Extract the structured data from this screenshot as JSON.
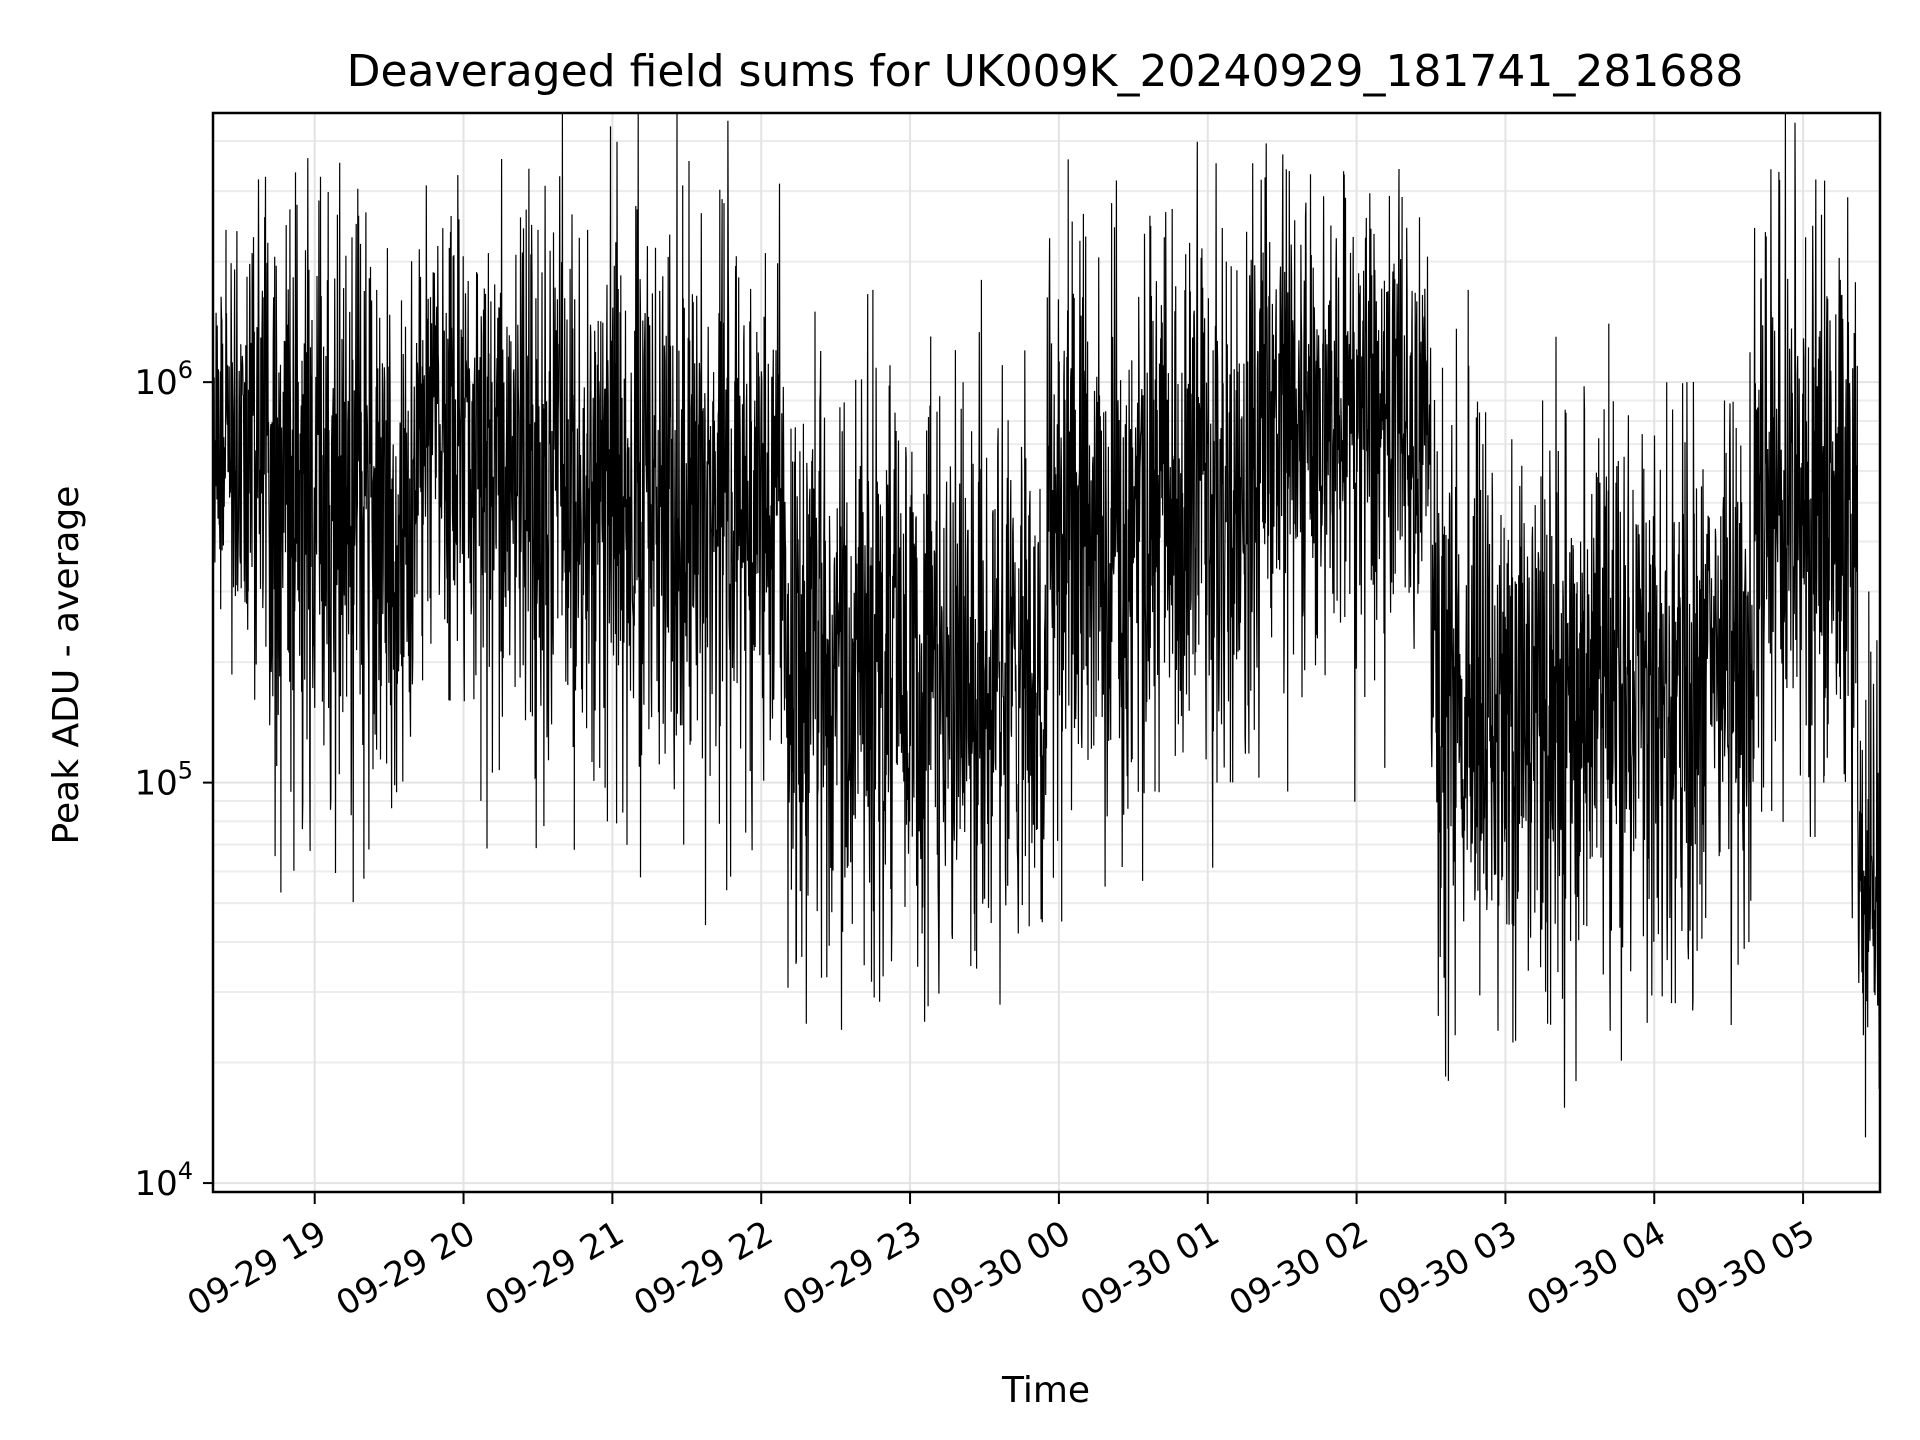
{
  "chart_data": {
    "type": "line",
    "title": "Deaveraged field sums for UK009K_20240929_181741_281688",
    "xlabel": "Time",
    "ylabel": "Peak ADU - average",
    "x_range": [
      "2024-09-29T18:19",
      "2024-09-30T05:31"
    ],
    "y_range": [
      9500,
      4700000
    ],
    "y_scale": "log",
    "grid": true,
    "x_ticks": [
      "09-29 19",
      "09-29 20",
      "09-29 21",
      "09-29 22",
      "09-29 23",
      "09-30 00",
      "09-30 01",
      "09-30 02",
      "09-30 03",
      "09-30 04",
      "09-30 05"
    ],
    "y_ticks": [
      {
        "base": "10",
        "exp": "4",
        "value": 10000
      },
      {
        "base": "10",
        "exp": "5",
        "value": 100000
      },
      {
        "base": "10",
        "exp": "6",
        "value": 1000000
      }
    ],
    "series": [
      {
        "color": "#000000",
        "segments": [
          {
            "start": "2024-09-29T18:19",
            "end": "2024-09-29T18:40",
            "median": 700000,
            "spread": 0.3,
            "spikes_up": [
              2400000,
              2100000
            ],
            "spikes_down": [
              380000,
              300000
            ]
          },
          {
            "start": "2024-09-29T18:40",
            "end": "2024-09-29T19:20",
            "median": 550000,
            "spread": 0.4,
            "spikes_up": [
              2700000,
              1800000
            ],
            "spikes_down": [
              110000,
              105000,
              150000
            ]
          },
          {
            "start": "2024-09-29T19:20",
            "end": "2024-09-29T19:40",
            "median": 480000,
            "spread": 0.38,
            "spikes_up": [
              1700000,
              1600000
            ],
            "spikes_down": [
              108000,
              200000
            ]
          },
          {
            "start": "2024-09-29T19:40",
            "end": "2024-09-29T20:00",
            "median": 800000,
            "spread": 0.32,
            "spikes_up": [
              3100000,
              2600000
            ],
            "spikes_down": [
              180000,
              250000
            ]
          },
          {
            "start": "2024-09-29T20:00",
            "end": "2024-09-29T20:40",
            "median": 600000,
            "spread": 0.38,
            "spikes_up": [
              2100000,
              2400000
            ],
            "spikes_down": [
              90000,
              150000
            ]
          },
          {
            "start": "2024-09-29T20:40",
            "end": "2024-09-29T21:20",
            "median": 500000,
            "spread": 0.4,
            "spikes_up": [
              2400000,
              2700000
            ],
            "spikes_down": [
              68000,
              80000,
              58000
            ]
          },
          {
            "start": "2024-09-29T21:20",
            "end": "2024-09-29T22:10",
            "median": 500000,
            "spread": 0.4,
            "spikes_up": [
              3100000,
              2800000,
              2100000
            ],
            "spikes_down": [
              70000,
              75000
            ]
          },
          {
            "start": "2024-09-29T22:10",
            "end": "2024-09-29T23:20",
            "median": 200000,
            "spread": 0.38,
            "spikes_up": [
              1500000,
              1700000,
              1300000
            ],
            "spikes_down": [
              25000,
              35000,
              42000
            ]
          },
          {
            "start": "2024-09-29T23:20",
            "end": "2024-09-29T23:55",
            "median": 170000,
            "spread": 0.36,
            "spikes_up": [
              1800000,
              1200000
            ],
            "spikes_down": [
              38000,
              42000
            ]
          },
          {
            "start": "2024-09-29T23:55",
            "end": "2024-09-30T00:30",
            "median": 400000,
            "spread": 0.4,
            "spikes_up": [
              3600000,
              2800000
            ],
            "spikes_down": [
              45000,
              55000
            ]
          },
          {
            "start": "2024-09-30T00:30",
            "end": "2024-09-30T01:20",
            "median": 450000,
            "spread": 0.36,
            "spikes_up": [
              2300000,
              2000000
            ],
            "spikes_down": [
              95000,
              100000
            ]
          },
          {
            "start": "2024-09-30T01:20",
            "end": "2024-09-30T02:30",
            "median": 800000,
            "spread": 0.32,
            "spikes_up": [
              3400000,
              3300000,
              2900000
            ],
            "spikes_down": [
              95000,
              180000
            ]
          },
          {
            "start": "2024-09-30T02:30",
            "end": "2024-09-30T03:30",
            "median": 150000,
            "spread": 0.4,
            "spikes_up": [
              1700000,
              900000
            ],
            "spikes_down": [
              18000,
              24000,
              25000
            ]
          },
          {
            "start": "2024-09-30T03:30",
            "end": "2024-09-30T04:40",
            "median": 170000,
            "spread": 0.38,
            "spikes_up": [
              1400000,
              1000000,
              900000
            ],
            "spikes_down": [
              24000,
              38000
            ]
          },
          {
            "start": "2024-09-30T04:40",
            "end": "2024-09-30T05:22",
            "median": 500000,
            "spread": 0.4,
            "spikes_up": [
              3400000,
              2300000,
              1800000
            ],
            "spikes_down": [
              85000,
              100000
            ]
          },
          {
            "start": "2024-09-30T05:22",
            "end": "2024-09-30T05:31",
            "median": 60000,
            "spread": 0.3,
            "spikes_up": [
              300000
            ],
            "spikes_down": [
              13000
            ]
          }
        ]
      }
    ]
  }
}
